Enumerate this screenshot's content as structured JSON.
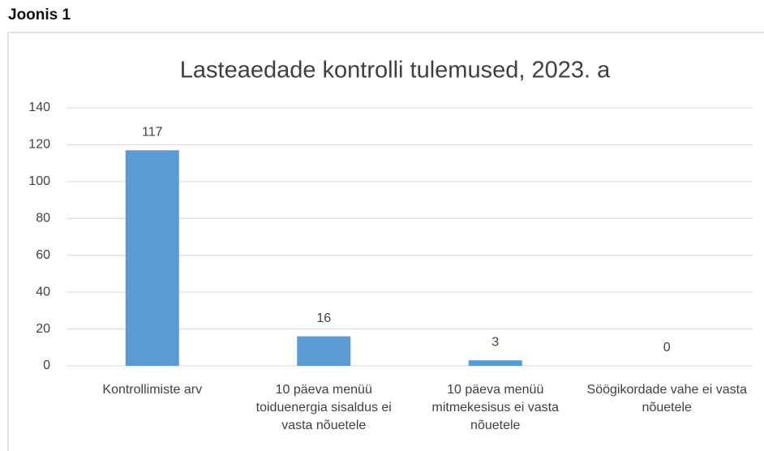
{
  "figure_label": "Joonis 1",
  "chart_data": {
    "type": "bar",
    "title": "Lasteaedade kontrolli tulemused, 2023. a",
    "categories": [
      "Kontrollimiste arv",
      "10 päeva menüü toiduenergia sisaldus ei vasta nõuetele",
      "10 päeva menüü mitmekesisus ei vasta nõuetele",
      "Söögikordade vahe ei vasta nõuetele"
    ],
    "values": [
      117,
      16,
      3,
      0
    ],
    "color": "#5b9bd5",
    "ylim": [
      0,
      140
    ],
    "yticks": [
      0,
      20,
      40,
      60,
      80,
      100,
      120,
      140
    ],
    "grid": true
  }
}
